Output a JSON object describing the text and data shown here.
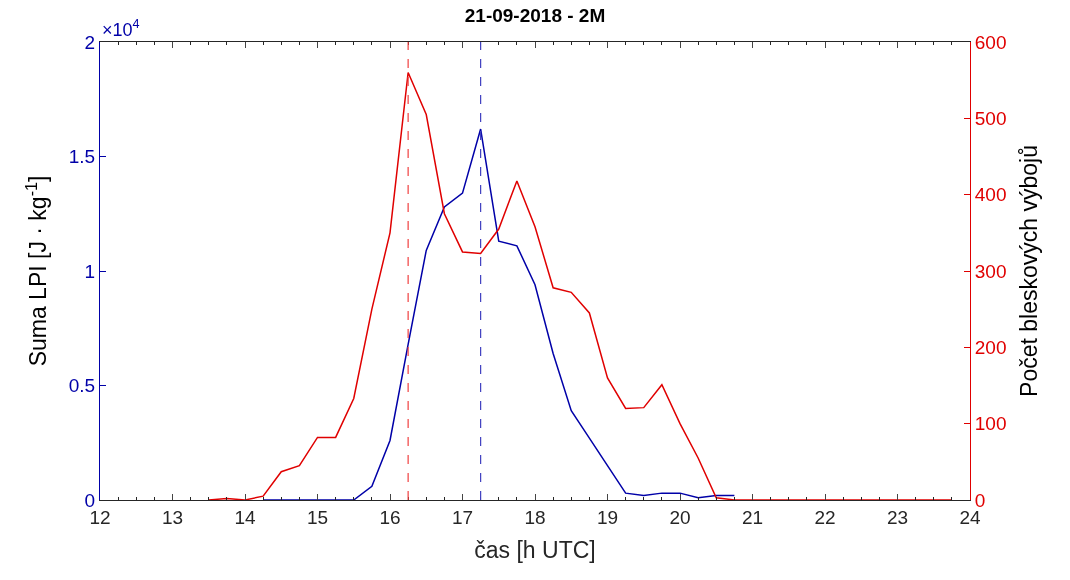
{
  "chart_data": {
    "type": "line",
    "title": "21-09-2018 - 2M",
    "xlabel": "čas [h UTC]",
    "ylabel": "Suma LPI [J · kg$^{-1}$]",
    "y2label": "Počet bleskových výbojů",
    "annotations": [
      "×10$^{4}$"
    ],
    "x": [
      13.5,
      13.75,
      14,
      14.25,
      14.5,
      14.75,
      15,
      15.25,
      15.5,
      15.75,
      16,
      16.25,
      16.5,
      16.75,
      17,
      17.25,
      17.5,
      17.75,
      18,
      18.25,
      18.5,
      18.75,
      19,
      19.25,
      19.5,
      19.75,
      20,
      20.25,
      20.5,
      20.75,
      21,
      21.25,
      21.5,
      21.75,
      22,
      22.25,
      22.5,
      22.75,
      23,
      23.25,
      23.5,
      23.75
    ],
    "series": [
      {
        "color": "#0000a8",
        "axis": "y",
        "values": [
          null,
          null,
          null,
          0,
          0,
          0,
          0,
          0,
          0,
          0.06,
          0.26,
          0.68,
          1.09,
          1.28,
          1.34,
          1.62,
          1.13,
          1.11,
          0.94,
          0.64,
          0.39,
          0.27,
          0.15,
          0.03,
          0.02,
          0.03,
          0.03,
          0.01,
          0.02,
          0.02,
          null,
          null,
          null,
          null,
          null,
          null,
          null,
          null,
          null,
          null,
          null,
          null
        ]
      },
      {
        "color": "#e00000",
        "axis": "y2",
        "values": [
          0,
          2,
          0,
          5,
          37,
          45,
          82,
          82,
          133,
          250,
          350,
          560,
          505,
          375,
          325,
          323,
          355,
          418,
          358,
          278,
          272,
          245,
          160,
          120,
          121,
          151,
          100,
          55,
          3,
          0,
          0,
          0,
          0,
          0,
          0,
          0,
          0,
          0,
          0,
          0,
          0,
          0
        ]
      }
    ],
    "xlim": [
      12,
      24
    ],
    "xticks": [
      12,
      13,
      14,
      15,
      16,
      17,
      18,
      19,
      20,
      21,
      22,
      23,
      24
    ],
    "ylim": [
      0,
      2
    ],
    "yticks": [
      0,
      0.5,
      1,
      1.5,
      2
    ],
    "y2lim": [
      0,
      600
    ],
    "y2ticks": [
      0,
      100,
      200,
      300,
      400,
      500,
      600
    ],
    "ref_lines": [
      {
        "axis": "x",
        "value": 16.25,
        "color": "#f04040",
        "line_style": "dashed"
      },
      {
        "axis": "x",
        "value": 17.25,
        "color": "#4040c0",
        "line_style": "dashed"
      }
    ],
    "marker": "none",
    "line_style": "solid"
  }
}
